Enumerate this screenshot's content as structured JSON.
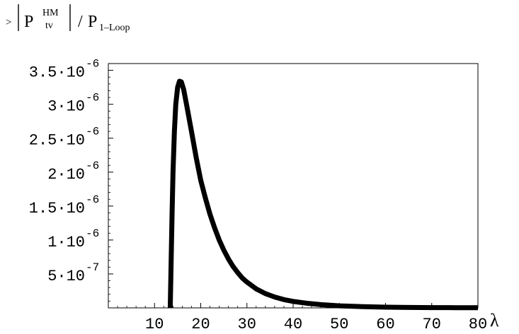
{
  "chart_data": {
    "type": "line",
    "title": {
      "prefix": ">",
      "numerator_main": "P",
      "numerator_sup": "HM",
      "numerator_sub": "tv",
      "divider": "/",
      "denominator_main": "P",
      "denominator_sub": "1–Loop"
    },
    "xlabel": "λ",
    "ylabel": "",
    "xlim": [
      0,
      80
    ],
    "ylim": [
      0,
      3.6e-06
    ],
    "grid": false,
    "x_ticks": [
      {
        "value": 10,
        "label": "10"
      },
      {
        "value": 20,
        "label": "20"
      },
      {
        "value": 30,
        "label": "30"
      },
      {
        "value": 40,
        "label": "40"
      },
      {
        "value": 50,
        "label": "50"
      },
      {
        "value": 60,
        "label": "60"
      },
      {
        "value": 70,
        "label": "70"
      },
      {
        "value": 80,
        "label": "80"
      }
    ],
    "y_ticks": [
      {
        "value": 5e-07,
        "mantissa": "5",
        "exponent": "-7"
      },
      {
        "value": 1e-06,
        "mantissa": "1",
        "exponent": "-6"
      },
      {
        "value": 1.5e-06,
        "mantissa": "1.5",
        "exponent": "-6"
      },
      {
        "value": 2e-06,
        "mantissa": "2",
        "exponent": "-6"
      },
      {
        "value": 2.5e-06,
        "mantissa": "2.5",
        "exponent": "-6"
      },
      {
        "value": 3e-06,
        "mantissa": "3",
        "exponent": "-6"
      },
      {
        "value": 3.5e-06,
        "mantissa": "3.5",
        "exponent": "-6"
      }
    ],
    "series": [
      {
        "color": "#000000",
        "points": [
          [
            13.4,
            0.0
          ],
          [
            13.6,
            7e-07
          ],
          [
            13.8,
            1.4e-06
          ],
          [
            14.0,
            2e-06
          ],
          [
            14.3,
            2.6e-06
          ],
          [
            14.6,
            3e-06
          ],
          [
            15.0,
            3.25e-06
          ],
          [
            15.4,
            3.34e-06
          ],
          [
            15.8,
            3.33e-06
          ],
          [
            16.3,
            3.22e-06
          ],
          [
            17.0,
            2.97e-06
          ],
          [
            18.0,
            2.6e-06
          ],
          [
            19.0,
            2.22e-06
          ],
          [
            20.0,
            1.88e-06
          ],
          [
            21.0,
            1.62e-06
          ],
          [
            22.0,
            1.38e-06
          ],
          [
            23.0,
            1.18e-06
          ],
          [
            24.0,
            1e-06
          ],
          [
            25.0,
            8.5e-07
          ],
          [
            26.0,
            7.2e-07
          ],
          [
            27.0,
            6.1e-07
          ],
          [
            28.0,
            5.2e-07
          ],
          [
            29.0,
            4.4e-07
          ],
          [
            30.0,
            3.8e-07
          ],
          [
            32.0,
            2.8e-07
          ],
          [
            34.0,
            2.1e-07
          ],
          [
            36.0,
            1.6e-07
          ],
          [
            38.0,
            1.22e-07
          ],
          [
            40.0,
            9.5e-08
          ],
          [
            43.0,
            6.8e-08
          ],
          [
            46.0,
            4.8e-08
          ],
          [
            50.0,
            3e-08
          ],
          [
            55.0,
            1.8e-08
          ],
          [
            60.0,
            1.1e-08
          ],
          [
            65.0,
            7e-09
          ],
          [
            70.0,
            4.5e-09
          ],
          [
            75.0,
            3e-09
          ],
          [
            80.0,
            2e-09
          ]
        ]
      }
    ]
  }
}
